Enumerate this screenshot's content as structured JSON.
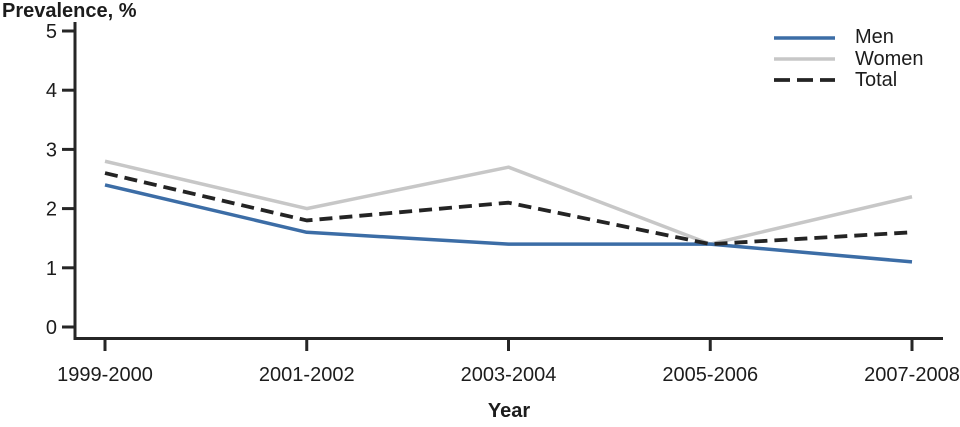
{
  "chart_data": {
    "type": "line",
    "title": "",
    "ylabel": "Prevalence, %",
    "xlabel": "Year",
    "categories": [
      "1999-2000",
      "2001-2002",
      "2003-2004",
      "2005-2006",
      "2007-2008"
    ],
    "series": [
      {
        "name": "Men",
        "values": [
          2.4,
          1.6,
          1.4,
          1.4,
          1.1
        ],
        "color": "#3c6da6",
        "line_style": "solid"
      },
      {
        "name": "Women",
        "values": [
          2.8,
          2.0,
          2.7,
          1.4,
          2.2
        ],
        "color": "#c7c7c7",
        "line_style": "solid"
      },
      {
        "name": "Total",
        "values": [
          2.6,
          1.8,
          2.1,
          1.4,
          1.6
        ],
        "color": "#242424",
        "line_style": "dashed"
      }
    ],
    "yticks": [
      "0",
      "1",
      "2",
      "3",
      "4",
      "5"
    ],
    "ylim": [
      0,
      5
    ],
    "grid": false,
    "legend_position": "top-right",
    "axis_color": "#262626"
  }
}
